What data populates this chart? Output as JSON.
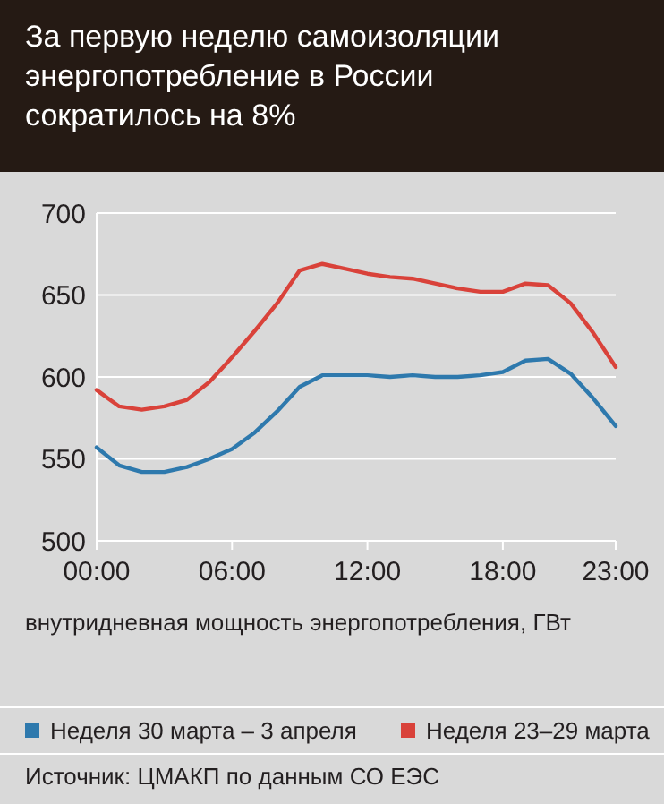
{
  "chart_data": {
    "type": "line",
    "title": "За первую неделю самоизоляции энергопотребление в России сократилось на 8%",
    "x": [
      0,
      1,
      2,
      3,
      4,
      5,
      6,
      7,
      8,
      9,
      10,
      11,
      12,
      13,
      14,
      15,
      16,
      17,
      18,
      19,
      20,
      21,
      22,
      23
    ],
    "series": [
      {
        "name": "Неделя 30 марта – 3 апреля",
        "color": "#2e79ad",
        "values": [
          557,
          546,
          542,
          542,
          545,
          550,
          556,
          566,
          579,
          594,
          601,
          601,
          601,
          600,
          601,
          600,
          600,
          601,
          603,
          610,
          611,
          602,
          587,
          570
        ]
      },
      {
        "name": "Неделя 23–29 марта",
        "color": "#d9423a",
        "values": [
          592,
          582,
          580,
          582,
          586,
          597,
          612,
          628,
          645,
          665,
          669,
          666,
          663,
          661,
          660,
          657,
          654,
          652,
          652,
          657,
          656,
          645,
          627,
          606
        ]
      }
    ],
    "xlim": [
      0,
      23
    ],
    "xticks": [
      {
        "value": 0,
        "label": "00:00"
      },
      {
        "value": 6,
        "label": "06:00"
      },
      {
        "value": 12,
        "label": "12:00"
      },
      {
        "value": 18,
        "label": "18:00"
      },
      {
        "value": 23,
        "label": "23:00"
      }
    ],
    "ylim": [
      500,
      700
    ],
    "yticks": [
      500,
      550,
      600,
      650,
      700
    ],
    "grid": "y",
    "legend": "bottom",
    "marker": "none",
    "line_style": "solid",
    "annotations": [
      "внутридневная мощность энергопотребления, ГВт",
      "Источник: ЦМАКП по данным СО ЕЭС"
    ]
  }
}
